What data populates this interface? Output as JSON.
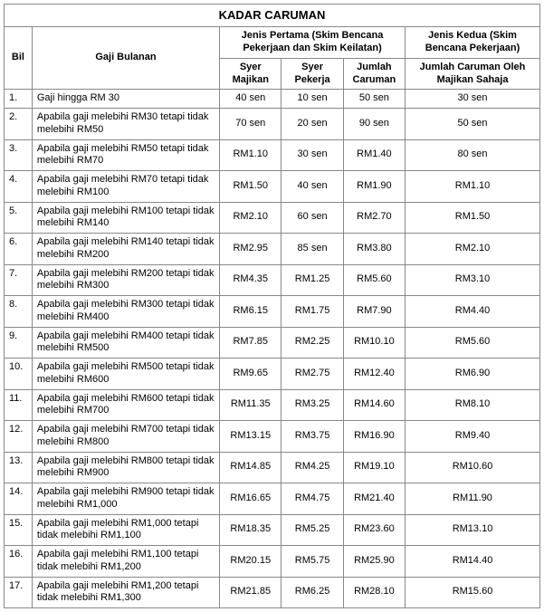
{
  "title": "KADAR CARUMAN",
  "headers": {
    "bil": "Bil",
    "gaji": "Gaji Bulanan",
    "jenis1": "Jenis Pertama (Skim Bencana Pekerjaan dan Skim Keilatan)",
    "jenis2": "Jenis Kedua (Skim Bencana Pekerjaan)",
    "syer_majikan": "Syer Majikan",
    "syer_pekerja": "Syer Pekerja",
    "jumlah": "Jumlah Caruman",
    "jumlah_majikan": "Jumlah Caruman Oleh Majikan Sahaja"
  },
  "rows": [
    {
      "bil": "1.",
      "gaji": "Gaji hingga RM 30",
      "majikan": "40 sen",
      "pekerja": "10 sen",
      "jumlah": "50 sen",
      "kedua": "30 sen"
    },
    {
      "bil": "2.",
      "gaji": "Apabila gaji melebihi RM30 tetapi tidak melebihi RM50",
      "majikan": "70 sen",
      "pekerja": "20 sen",
      "jumlah": "90 sen",
      "kedua": "50 sen"
    },
    {
      "bil": "3.",
      "gaji": "Apabila gaji melebihi RM50 tetapi tidak melebihi RM70",
      "majikan": "RM1.10",
      "pekerja": "30 sen",
      "jumlah": "RM1.40",
      "kedua": "80 sen"
    },
    {
      "bil": "4.",
      "gaji": "Apabila gaji melebihi RM70 tetapi tidak melebihi RM100",
      "majikan": "RM1.50",
      "pekerja": "40 sen",
      "jumlah": "RM1.90",
      "kedua": "RM1.10"
    },
    {
      "bil": "5.",
      "gaji": "Apabila gaji melebihi RM100 tetapi tidak melebihi RM140",
      "majikan": "RM2.10",
      "pekerja": "60 sen",
      "jumlah": "RM2.70",
      "kedua": "RM1.50"
    },
    {
      "bil": "6.",
      "gaji": "Apabila gaji melebihi RM140 tetapi tidak melebihi RM200",
      "majikan": "RM2.95",
      "pekerja": "85 sen",
      "jumlah": "RM3.80",
      "kedua": "RM2.10"
    },
    {
      "bil": "7.",
      "gaji": "Apabila gaji melebihi RM200 tetapi tidak melebihi RM300",
      "majikan": "RM4.35",
      "pekerja": "RM1.25",
      "jumlah": "RM5.60",
      "kedua": "RM3.10"
    },
    {
      "bil": "8.",
      "gaji": "Apabila gaji melebihi RM300 tetapi tidak melebihi RM400",
      "majikan": "RM6.15",
      "pekerja": "RM1.75",
      "jumlah": "RM7.90",
      "kedua": "RM4.40"
    },
    {
      "bil": "9.",
      "gaji": "Apabila gaji melebihi RM400 tetapi tidak melebihi RM500",
      "majikan": "RM7.85",
      "pekerja": "RM2.25",
      "jumlah": "RM10.10",
      "kedua": "RM5.60"
    },
    {
      "bil": "10.",
      "gaji": "Apabila gaji melebihi RM500 tetapi tidak melebihi RM600",
      "majikan": "RM9.65",
      "pekerja": "RM2.75",
      "jumlah": "RM12.40",
      "kedua": "RM6.90"
    },
    {
      "bil": "11.",
      "gaji": "Apabila gaji melebihi RM600 tetapi tidak melebihi RM700",
      "majikan": "RM11.35",
      "pekerja": "RM3.25",
      "jumlah": "RM14.60",
      "kedua": "RM8.10"
    },
    {
      "bil": "12.",
      "gaji": "Apabila gaji melebihi RM700 tetapi tidak melebihi RM800",
      "majikan": "RM13.15",
      "pekerja": "RM3.75",
      "jumlah": "RM16.90",
      "kedua": "RM9.40"
    },
    {
      "bil": "13.",
      "gaji": "Apabila gaji melebihi RM800 tetapi tidak melebihi RM900",
      "majikan": "RM14.85",
      "pekerja": "RM4.25",
      "jumlah": "RM19.10",
      "kedua": "RM10.60"
    },
    {
      "bil": "14.",
      "gaji": "Apabila gaji melebihi RM900 tetapi tidak melebihi RM1,000",
      "majikan": "RM16.65",
      "pekerja": "RM4.75",
      "jumlah": "RM21.40",
      "kedua": "RM11.90"
    },
    {
      "bil": "15.",
      "gaji": "Apabila gaji melebihi RM1,000 tetapi tidak melebihi RM1,100",
      "majikan": "RM18.35",
      "pekerja": "RM5.25",
      "jumlah": "RM23.60",
      "kedua": "RM13.10"
    },
    {
      "bil": "16.",
      "gaji": "Apabila gaji melebihi RM1,100 tetapi tidak melebihi RM1,200",
      "majikan": "RM20.15",
      "pekerja": "RM5.75",
      "jumlah": "RM25.90",
      "kedua": "RM14.40"
    },
    {
      "bil": "17.",
      "gaji": "Apabila gaji melebihi RM1,200 tetapi tidak melebihi RM1,300",
      "majikan": "RM21.85",
      "pekerja": "RM6.25",
      "jumlah": "RM28.10",
      "kedua": "RM15.60"
    }
  ]
}
